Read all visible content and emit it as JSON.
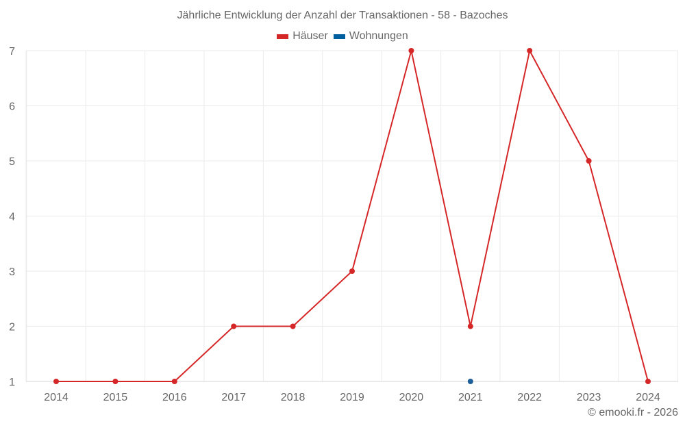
{
  "chart_data": {
    "type": "line",
    "title": "Jährliche Entwicklung der Anzahl der Transaktionen - 58 - Bazoches",
    "xlabel": "",
    "ylabel": "",
    "x": [
      2014,
      2015,
      2016,
      2017,
      2018,
      2019,
      2020,
      2021,
      2022,
      2023,
      2024
    ],
    "series": [
      {
        "name": "Häuser",
        "color": "#d62728",
        "values": [
          1,
          1,
          1,
          2,
          2,
          3,
          7,
          2,
          7,
          5,
          1
        ]
      },
      {
        "name": "Wohnungen",
        "color": "#1f5f99",
        "values": [
          null,
          null,
          null,
          null,
          null,
          null,
          null,
          1,
          null,
          null,
          null
        ]
      }
    ],
    "ylim": [
      1,
      7
    ],
    "yticks": [
      1,
      2,
      3,
      4,
      5,
      6,
      7
    ],
    "grid": true,
    "legend_position": "top"
  },
  "title": "Jährliche Entwicklung der Anzahl der Transaktionen - 58 - Bazoches",
  "legend": [
    {
      "label": "Häuser",
      "color": "#d62728"
    },
    {
      "label": "Wohnungen",
      "color": "#005f9e"
    }
  ],
  "credit": "© emooki.fr - 2026"
}
